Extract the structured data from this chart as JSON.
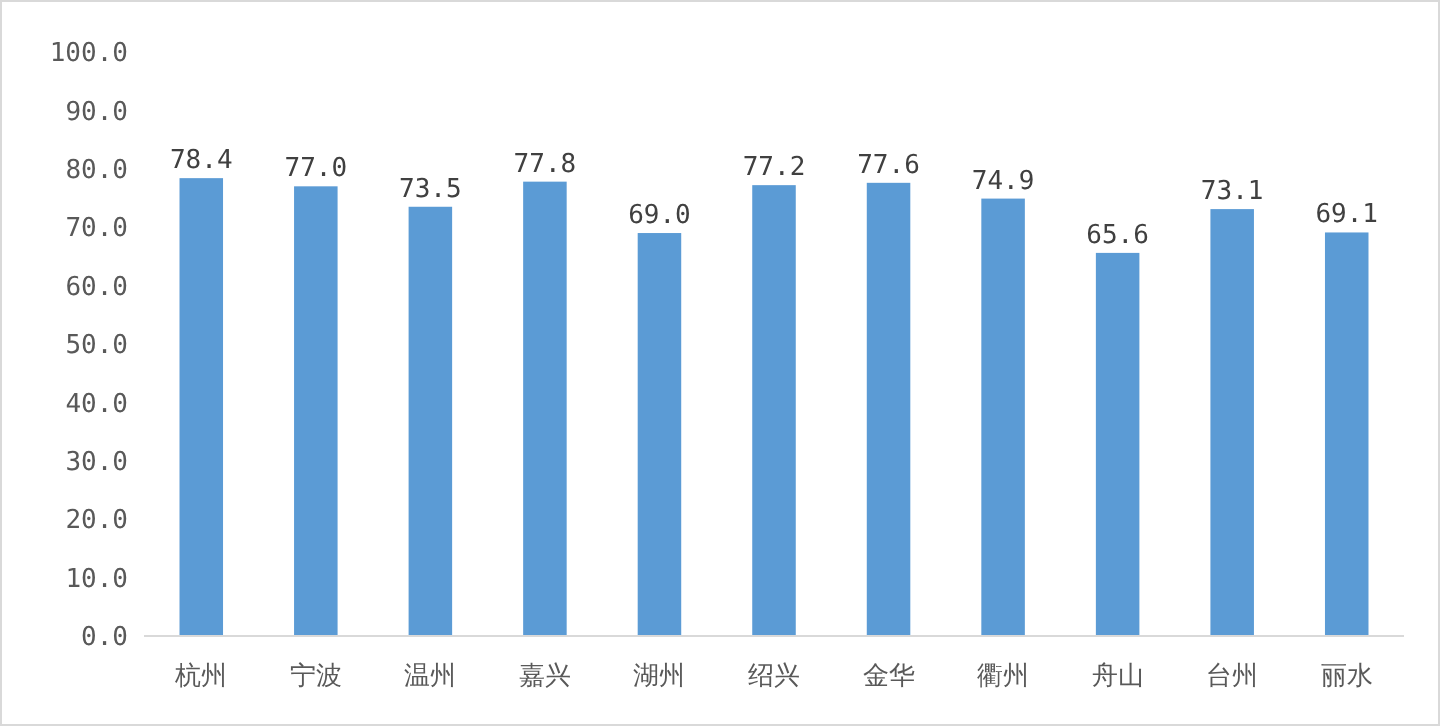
{
  "chart_data": {
    "type": "bar",
    "categories": [
      "杭州",
      "宁波",
      "温州",
      "嘉兴",
      "湖州",
      "绍兴",
      "金华",
      "衢州",
      "舟山",
      "台州",
      "丽水"
    ],
    "values": [
      78.4,
      77.0,
      73.5,
      77.8,
      69.0,
      77.2,
      77.6,
      74.9,
      65.6,
      73.1,
      69.1
    ],
    "value_labels": [
      "78.4",
      "77.0",
      "73.5",
      "77.8",
      "69.0",
      "77.2",
      "77.6",
      "74.9",
      "65.6",
      "73.1",
      "69.1"
    ],
    "color": "#5b9bd5",
    "ylim": [
      0,
      100
    ],
    "yticks": [
      {
        "value": 0,
        "label": "0.0"
      },
      {
        "value": 10,
        "label": "10.0"
      },
      {
        "value": 20,
        "label": "20.0"
      },
      {
        "value": 30,
        "label": "30.0"
      },
      {
        "value": 40,
        "label": "40.0"
      },
      {
        "value": 50,
        "label": "50.0"
      },
      {
        "value": 60,
        "label": "60.0"
      },
      {
        "value": 70,
        "label": "70.0"
      },
      {
        "value": 80,
        "label": "80.0"
      },
      {
        "value": 90,
        "label": "90.0"
      },
      {
        "value": 100,
        "label": "100.0"
      }
    ],
    "grid": false
  }
}
